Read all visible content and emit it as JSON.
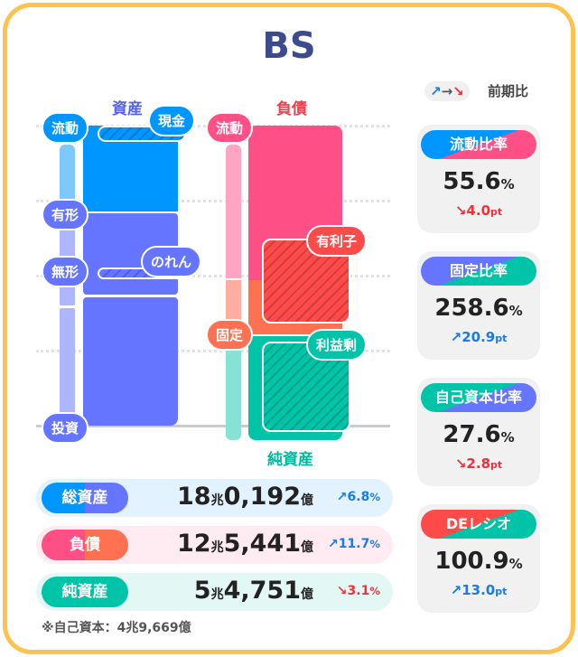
{
  "title": "BS",
  "legend": {
    "up": "↗",
    "flat": "→",
    "down": "↘",
    "label": "前期比"
  },
  "chart": {
    "assets_heading": "資産",
    "liabilities_heading": "負債",
    "net_assets_heading": "純資産",
    "labels": {
      "asset_current": "流動",
      "cash": "現金",
      "tangible": "有形",
      "intangible": "無形",
      "goodwill": "のれん",
      "investment": "投資",
      "liab_current": "流動",
      "interest_bearing": "有利子",
      "fixed": "固定",
      "retained": "利益剰"
    },
    "colors": {
      "asset_current": "#0096FF",
      "asset_fixed": "#6675FF",
      "liab_current": "#FF4F87",
      "liab_fixed": "#FF7150",
      "net_assets": "#00C4A7",
      "interest_bearing": "#FF4A4A"
    }
  },
  "summary": [
    {
      "label": "総資産",
      "trillion": "18",
      "unit_t": "兆",
      "billion": "0,192",
      "unit_b": "億",
      "change": "↗6.8",
      "change_unit": "%",
      "direction": "up"
    },
    {
      "label": "負債",
      "trillion": "12",
      "unit_t": "兆",
      "billion": "5,441",
      "unit_b": "億",
      "change": "↗11.7",
      "change_unit": "%",
      "direction": "up"
    },
    {
      "label": "純資産",
      "trillion": "5",
      "unit_t": "兆",
      "billion": "4,751",
      "unit_b": "億",
      "change": "↘3.1",
      "change_unit": "%",
      "direction": "down"
    }
  ],
  "note": "※自己資本：4兆9,669億",
  "ratios": [
    {
      "label": "流動比率",
      "value": "55.6",
      "unit": "%",
      "change": "↘4.0",
      "change_unit": "pt",
      "direction": "down"
    },
    {
      "label": "固定比率",
      "value": "258.6",
      "unit": "%",
      "change": "↗20.9",
      "change_unit": "pt",
      "direction": "up"
    },
    {
      "label": "自己資本比率",
      "value": "27.6",
      "unit": "%",
      "change": "↘2.8",
      "change_unit": "pt",
      "direction": "down"
    },
    {
      "label": "DEレシオ",
      "value": "100.9",
      "unit": "%",
      "change": "↗13.0",
      "change_unit": "pt",
      "direction": "up"
    }
  ]
}
